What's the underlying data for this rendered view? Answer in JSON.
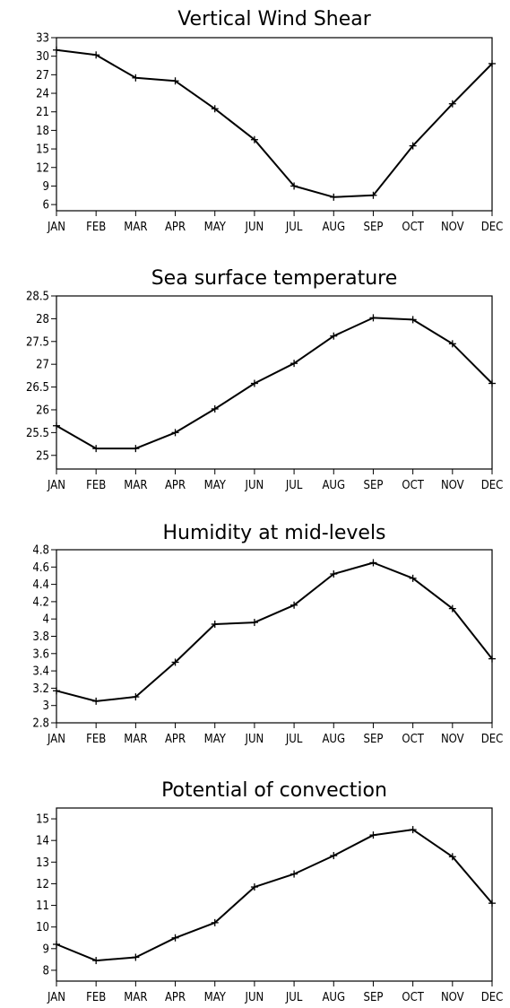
{
  "chart_data": [
    {
      "type": "line",
      "title": "Vertical Wind Shear",
      "categories": [
        "JAN",
        "FEB",
        "MAR",
        "APR",
        "MAY",
        "JUN",
        "JUL",
        "AUG",
        "SEP",
        "OCT",
        "NOV",
        "DEC"
      ],
      "values": [
        31.0,
        30.2,
        26.5,
        26.0,
        21.5,
        16.5,
        9.0,
        7.2,
        7.5,
        15.5,
        22.3,
        28.8
      ],
      "ylim": [
        5,
        33
      ],
      "yticks": [
        "6",
        "9",
        "12",
        "15",
        "18",
        "21",
        "24",
        "27",
        "30",
        "33"
      ],
      "ytick_values": [
        6,
        9,
        12,
        15,
        18,
        21,
        24,
        27,
        30,
        33
      ],
      "xlabel": "",
      "ylabel": "",
      "grid": false,
      "line_color": "#000000"
    },
    {
      "type": "line",
      "title": "Sea surface temperature",
      "categories": [
        "JAN",
        "FEB",
        "MAR",
        "APR",
        "MAY",
        "JUN",
        "JUL",
        "AUG",
        "SEP",
        "OCT",
        "NOV",
        "DEC"
      ],
      "values": [
        25.65,
        25.15,
        25.15,
        25.5,
        26.02,
        26.58,
        27.02,
        27.62,
        28.02,
        27.98,
        27.45,
        26.58
      ],
      "ylim": [
        24.7,
        28.5
      ],
      "yticks": [
        "25",
        "25.5",
        "26",
        "26.5",
        "27",
        "27.5",
        "28",
        "28.5"
      ],
      "ytick_values": [
        25,
        25.5,
        26,
        26.5,
        27,
        27.5,
        28,
        28.5
      ],
      "xlabel": "",
      "ylabel": "",
      "grid": false,
      "line_color": "#000000"
    },
    {
      "type": "line",
      "title": "Humidity at mid-levels",
      "categories": [
        "JAN",
        "FEB",
        "MAR",
        "APR",
        "MAY",
        "JUN",
        "JUL",
        "AUG",
        "SEP",
        "OCT",
        "NOV",
        "DEC"
      ],
      "values": [
        3.17,
        3.05,
        3.1,
        3.5,
        3.94,
        3.96,
        4.16,
        4.52,
        4.65,
        4.47,
        4.12,
        3.54
      ],
      "ylim": [
        2.8,
        4.8
      ],
      "yticks": [
        "2.8",
        "3",
        "3.2",
        "3.4",
        "3.6",
        "3.8",
        "4",
        "4.2",
        "4.4",
        "4.6",
        "4.8"
      ],
      "ytick_values": [
        2.8,
        3.0,
        3.2,
        3.4,
        3.6,
        3.8,
        4.0,
        4.2,
        4.4,
        4.6,
        4.8
      ],
      "xlabel": "",
      "ylabel": "",
      "grid": false,
      "line_color": "#000000"
    },
    {
      "type": "line",
      "title": "Potential of convection",
      "categories": [
        "JAN",
        "FEB",
        "MAR",
        "APR",
        "MAY",
        "JUN",
        "JUL",
        "AUG",
        "SEP",
        "OCT",
        "NOV",
        "DEC"
      ],
      "values": [
        9.2,
        8.45,
        8.6,
        9.5,
        10.2,
        11.85,
        12.45,
        13.3,
        14.25,
        14.5,
        13.25,
        11.1
      ],
      "ylim": [
        7.5,
        15.5
      ],
      "yticks": [
        "8",
        "9",
        "10",
        "11",
        "12",
        "13",
        "14",
        "15"
      ],
      "ytick_values": [
        8,
        9,
        10,
        11,
        12,
        13,
        14,
        15
      ],
      "xlabel": "",
      "ylabel": "",
      "grid": false,
      "line_color": "#000000"
    }
  ]
}
